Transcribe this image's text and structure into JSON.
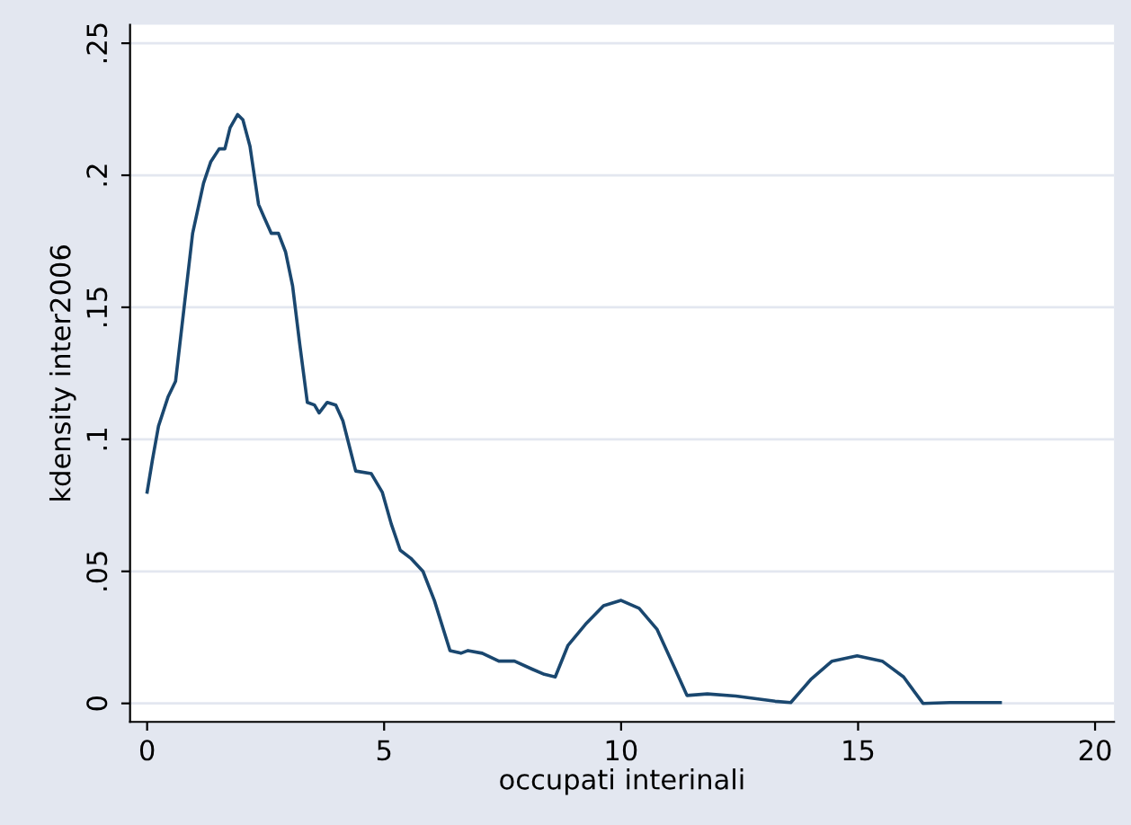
{
  "chart_data": {
    "type": "line",
    "xlabel": "occupati interinali",
    "ylabel": "kdensity inter2006",
    "x": [
      0,
      0.11,
      0.24,
      0.44,
      0.6,
      0.78,
      0.96,
      1.19,
      1.34,
      1.52,
      1.64,
      1.75,
      1.91,
      2.02,
      2.17,
      2.35,
      2.47,
      2.62,
      2.77,
      2.92,
      3.07,
      3.22,
      3.38,
      3.53,
      3.63,
      3.8,
      3.98,
      4.13,
      4.4,
      4.73,
      4.96,
      5.15,
      5.34,
      5.56,
      5.82,
      6.06,
      6.39,
      6.62,
      6.77,
      7.07,
      7.42,
      7.75,
      8.12,
      8.38,
      8.61,
      8.88,
      9.25,
      9.63,
      10.0,
      10.38,
      10.76,
      11.14,
      11.39,
      11.82,
      12.42,
      13.25,
      13.58,
      14.0,
      14.45,
      14.98,
      15.51,
      15.96,
      16.37,
      16.94,
      18.0
    ],
    "series": [
      {
        "color": "#1a476f",
        "values": [
          0.08,
          0.092,
          0.105,
          0.116,
          0.122,
          0.15,
          0.178,
          0.197,
          0.205,
          0.21,
          0.21,
          0.218,
          0.223,
          0.221,
          0.211,
          0.189,
          0.184,
          0.178,
          0.178,
          0.171,
          0.158,
          0.136,
          0.114,
          0.113,
          0.11,
          0.114,
          0.113,
          0.107,
          0.088,
          0.087,
          0.08,
          0.068,
          0.058,
          0.055,
          0.05,
          0.039,
          0.02,
          0.019,
          0.02,
          0.019,
          0.016,
          0.016,
          0.013,
          0.011,
          0.01,
          0.022,
          0.03,
          0.037,
          0.039,
          0.036,
          0.028,
          0.013,
          0.003,
          0.0036,
          0.0028,
          0.0008,
          0.0003,
          0.009,
          0.016,
          0.018,
          0.016,
          0.01,
          0.0,
          0.0003,
          0.0003
        ]
      }
    ],
    "xlim": [
      -0.36,
      20.4
    ],
    "ylim": [
      -0.007,
      0.257
    ],
    "xticks": [
      0,
      5,
      10,
      15,
      20
    ],
    "yticks": [
      0,
      {
        "value": 0.05,
        "label": ".05"
      },
      {
        "value": 0.1,
        "label": ".1"
      },
      {
        "value": 0.15,
        "label": ".15"
      },
      {
        "value": 0.2,
        "label": ".2"
      },
      {
        "value": 0.25,
        "label": ".25"
      }
    ],
    "grid": "y",
    "line_style": "solid",
    "marker": "none"
  }
}
